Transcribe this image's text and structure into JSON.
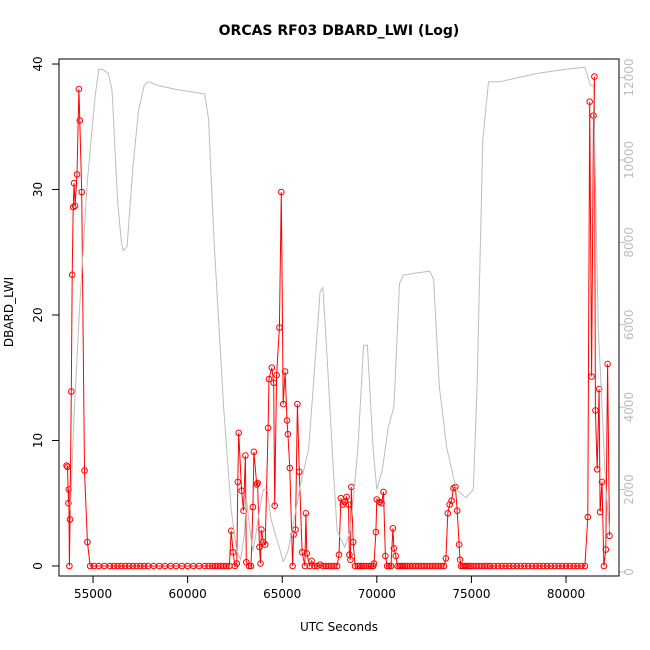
{
  "chart_data": {
    "type": "line",
    "title": "ORCAS RF03 DBARD_LWI (Log)",
    "xlabel": "UTC Seconds",
    "ylabel": "DBARD_LWI",
    "xlim": [
      53200,
      82800
    ],
    "ylim": [
      -0.8,
      40.4
    ],
    "y2lim": [
      -100,
      12450
    ],
    "x_ticks": [
      55000,
      60000,
      65000,
      70000,
      75000,
      80000
    ],
    "y_ticks": [
      0,
      10,
      20,
      30,
      40
    ],
    "y2_ticks": [
      0,
      2000,
      4000,
      6000,
      8000,
      10000,
      12000
    ],
    "series": [
      {
        "color": "#ff0000",
        "style": "line+open-circles",
        "axis": "left",
        "points": [
          [
            53600,
            8
          ],
          [
            53650,
            7.9
          ],
          [
            53700,
            5
          ],
          [
            53720,
            6.1
          ],
          [
            53750,
            0
          ],
          [
            53780,
            3.7
          ],
          [
            53850,
            13.9
          ],
          [
            53900,
            23.2
          ],
          [
            53950,
            28.6
          ],
          [
            54000,
            30.5
          ],
          [
            54050,
            28.7
          ],
          [
            54150,
            31.2
          ],
          [
            54250,
            38
          ],
          [
            54300,
            35.5
          ],
          [
            54400,
            29.8
          ],
          [
            54550,
            7.6
          ],
          [
            54700,
            1.9
          ],
          [
            54850,
            0
          ],
          [
            55050,
            0
          ],
          [
            55300,
            0
          ],
          [
            55600,
            0
          ],
          [
            55900,
            0
          ],
          [
            56100,
            0
          ],
          [
            56300,
            0
          ],
          [
            56500,
            0
          ],
          [
            56700,
            0
          ],
          [
            56900,
            0
          ],
          [
            57100,
            0
          ],
          [
            57300,
            0
          ],
          [
            57500,
            0
          ],
          [
            57700,
            0
          ],
          [
            57900,
            0
          ],
          [
            58200,
            0
          ],
          [
            58500,
            0
          ],
          [
            58800,
            0
          ],
          [
            59100,
            0
          ],
          [
            59400,
            0
          ],
          [
            59700,
            0
          ],
          [
            60000,
            0
          ],
          [
            60300,
            0
          ],
          [
            60600,
            0
          ],
          [
            60900,
            0
          ],
          [
            61100,
            0
          ],
          [
            61300,
            0
          ],
          [
            61450,
            0
          ],
          [
            61600,
            0
          ],
          [
            61750,
            0
          ],
          [
            61900,
            0
          ],
          [
            62050,
            0
          ],
          [
            62200,
            0
          ],
          [
            62300,
            2.8
          ],
          [
            62400,
            1.1
          ],
          [
            62500,
            0
          ],
          [
            62600,
            0.2
          ],
          [
            62650,
            6.7
          ],
          [
            62700,
            10.6
          ],
          [
            62850,
            6
          ],
          [
            62950,
            4.4
          ],
          [
            63050,
            8.8
          ],
          [
            63100,
            0.3
          ],
          [
            63250,
            0
          ],
          [
            63350,
            0
          ],
          [
            63450,
            4.7
          ],
          [
            63500,
            9.1
          ],
          [
            63650,
            6.5
          ],
          [
            63700,
            6.6
          ],
          [
            63800,
            1.5
          ],
          [
            63850,
            0.2
          ],
          [
            63900,
            2.9
          ],
          [
            64000,
            1.9
          ],
          [
            64100,
            1.7
          ],
          [
            64250,
            11
          ],
          [
            64300,
            14.9
          ],
          [
            64450,
            15.8
          ],
          [
            64550,
            14.6
          ],
          [
            64600,
            4.8
          ],
          [
            64700,
            15.2
          ],
          [
            64850,
            19
          ],
          [
            64950,
            29.8
          ],
          [
            65050,
            12.9
          ],
          [
            65150,
            15.5
          ],
          [
            65250,
            11.6
          ],
          [
            65300,
            10.5
          ],
          [
            65400,
            7.8
          ],
          [
            65550,
            0
          ],
          [
            65600,
            2.5
          ],
          [
            65700,
            2.9
          ],
          [
            65800,
            12.9
          ],
          [
            65900,
            7.5
          ],
          [
            66050,
            1.1
          ],
          [
            66200,
            0
          ],
          [
            66250,
            4.2
          ],
          [
            66300,
            1
          ],
          [
            66450,
            0
          ],
          [
            66550,
            0.4
          ],
          [
            66700,
            0
          ],
          [
            66850,
            0
          ],
          [
            67000,
            0.1
          ],
          [
            67150,
            0
          ],
          [
            67300,
            0
          ],
          [
            67450,
            0
          ],
          [
            67600,
            0
          ],
          [
            67750,
            0
          ],
          [
            67900,
            0
          ],
          [
            68000,
            0.9
          ],
          [
            68100,
            5.4
          ],
          [
            68200,
            4.9
          ],
          [
            68300,
            5.1
          ],
          [
            68400,
            5.5
          ],
          [
            68500,
            4.9
          ],
          [
            68550,
            0.9
          ],
          [
            68600,
            0.5
          ],
          [
            68650,
            6.3
          ],
          [
            68750,
            1.9
          ],
          [
            68850,
            0
          ],
          [
            69000,
            0
          ],
          [
            69100,
            0
          ],
          [
            69200,
            0
          ],
          [
            69300,
            0
          ],
          [
            69450,
            0
          ],
          [
            69600,
            0
          ],
          [
            69700,
            0
          ],
          [
            69800,
            0
          ],
          [
            69850,
            0.2
          ],
          [
            69950,
            2.7
          ],
          [
            70000,
            5.3
          ],
          [
            70150,
            5.1
          ],
          [
            70250,
            5
          ],
          [
            70350,
            5.9
          ],
          [
            70450,
            0.8
          ],
          [
            70550,
            0
          ],
          [
            70650,
            0
          ],
          [
            70750,
            0
          ],
          [
            70850,
            3
          ],
          [
            70900,
            1.4
          ],
          [
            71000,
            0.8
          ],
          [
            71100,
            0
          ],
          [
            71200,
            0
          ],
          [
            71300,
            0
          ],
          [
            71400,
            0
          ],
          [
            71500,
            0
          ],
          [
            71600,
            0
          ],
          [
            71750,
            0
          ],
          [
            71900,
            0
          ],
          [
            72050,
            0
          ],
          [
            72200,
            0
          ],
          [
            72350,
            0
          ],
          [
            72500,
            0
          ],
          [
            72650,
            0
          ],
          [
            72800,
            0
          ],
          [
            72950,
            0
          ],
          [
            73100,
            0
          ],
          [
            73250,
            0
          ],
          [
            73400,
            0
          ],
          [
            73550,
            0
          ],
          [
            73650,
            0.6
          ],
          [
            73750,
            4.2
          ],
          [
            73850,
            4.9
          ],
          [
            73950,
            5.2
          ],
          [
            74050,
            6.2
          ],
          [
            74150,
            6.3
          ],
          [
            74250,
            4.4
          ],
          [
            74350,
            1.7
          ],
          [
            74400,
            0.5
          ],
          [
            74450,
            0
          ],
          [
            74550,
            0
          ],
          [
            74650,
            0
          ],
          [
            74750,
            0
          ],
          [
            74850,
            0
          ],
          [
            74950,
            0
          ],
          [
            75100,
            0
          ],
          [
            75250,
            0
          ],
          [
            75400,
            0
          ],
          [
            75550,
            0
          ],
          [
            75700,
            0
          ],
          [
            75850,
            0
          ],
          [
            76000,
            0
          ],
          [
            76200,
            0
          ],
          [
            76400,
            0
          ],
          [
            76600,
            0
          ],
          [
            76800,
            0
          ],
          [
            77000,
            0
          ],
          [
            77200,
            0
          ],
          [
            77400,
            0
          ],
          [
            77600,
            0
          ],
          [
            77800,
            0
          ],
          [
            78000,
            0
          ],
          [
            78200,
            0
          ],
          [
            78400,
            0
          ],
          [
            78600,
            0
          ],
          [
            78800,
            0
          ],
          [
            79000,
            0
          ],
          [
            79200,
            0
          ],
          [
            79400,
            0
          ],
          [
            79600,
            0
          ],
          [
            79800,
            0
          ],
          [
            80000,
            0
          ],
          [
            80200,
            0
          ],
          [
            80400,
            0
          ],
          [
            80600,
            0
          ],
          [
            80800,
            0
          ],
          [
            81000,
            0
          ],
          [
            81150,
            3.9
          ],
          [
            81250,
            37
          ],
          [
            81350,
            15.1
          ],
          [
            81450,
            35.9
          ],
          [
            81500,
            39
          ],
          [
            81550,
            12.4
          ],
          [
            81650,
            7.7
          ],
          [
            81750,
            14.1
          ],
          [
            81800,
            4.3
          ],
          [
            81900,
            6.7
          ],
          [
            82000,
            0
          ],
          [
            82100,
            1.3
          ],
          [
            82200,
            16.1
          ],
          [
            82300,
            2.4
          ]
        ]
      },
      {
        "color": "#bdbdbd",
        "style": "line",
        "axis": "right",
        "points": [
          [
            53800,
            1500
          ],
          [
            54000,
            3800
          ],
          [
            54300,
            6500
          ],
          [
            54700,
            9500
          ],
          [
            55100,
            11500
          ],
          [
            55300,
            12200
          ],
          [
            55500,
            12200
          ],
          [
            55800,
            12100
          ],
          [
            56000,
            11700
          ],
          [
            56300,
            9000
          ],
          [
            56500,
            8000
          ],
          [
            56600,
            7800
          ],
          [
            56800,
            7900
          ],
          [
            57100,
            9800
          ],
          [
            57400,
            11200
          ],
          [
            57700,
            11800
          ],
          [
            57900,
            11900
          ],
          [
            58500,
            11800
          ],
          [
            59500,
            11700
          ],
          [
            60300,
            11650
          ],
          [
            60900,
            11600
          ],
          [
            61100,
            11000
          ],
          [
            61400,
            8000
          ],
          [
            61900,
            4000
          ],
          [
            62300,
            1500
          ],
          [
            62600,
            500
          ],
          [
            62800,
            300
          ],
          [
            63000,
            900
          ],
          [
            63100,
            1800
          ],
          [
            63300,
            1000
          ],
          [
            63450,
            500
          ],
          [
            63600,
            900
          ],
          [
            63800,
            1500
          ],
          [
            64000,
            2000
          ],
          [
            64200,
            2000
          ],
          [
            64400,
            1300
          ],
          [
            64700,
            800
          ],
          [
            64900,
            500
          ],
          [
            65050,
            250
          ],
          [
            65300,
            500
          ],
          [
            65600,
            1200
          ],
          [
            66000,
            2200
          ],
          [
            66400,
            3000
          ],
          [
            66800,
            5500
          ],
          [
            67000,
            6800
          ],
          [
            67150,
            6900
          ],
          [
            67400,
            5000
          ],
          [
            67700,
            2500
          ],
          [
            67900,
            1000
          ],
          [
            68100,
            800
          ],
          [
            68300,
            600
          ],
          [
            68600,
            1000
          ],
          [
            69000,
            3000
          ],
          [
            69300,
            5500
          ],
          [
            69500,
            5500
          ],
          [
            69800,
            3000
          ],
          [
            70000,
            2000
          ],
          [
            70300,
            2500
          ],
          [
            70600,
            3500
          ],
          [
            70900,
            4000
          ],
          [
            71200,
            7000
          ],
          [
            71400,
            7200
          ],
          [
            72000,
            7250
          ],
          [
            72800,
            7300
          ],
          [
            73000,
            7100
          ],
          [
            73300,
            4500
          ],
          [
            73700,
            3000
          ],
          [
            74200,
            2000
          ],
          [
            74700,
            1800
          ],
          [
            75100,
            2000
          ],
          [
            75300,
            4500
          ],
          [
            75600,
            10500
          ],
          [
            75900,
            11900
          ],
          [
            76500,
            11900
          ],
          [
            77500,
            12000
          ],
          [
            78500,
            12100
          ],
          [
            80000,
            12200
          ],
          [
            81000,
            12250
          ],
          [
            81300,
            11800
          ],
          [
            81450,
            11800
          ],
          [
            81700,
            6000
          ],
          [
            82100,
            2000
          ],
          [
            82300,
            1000
          ]
        ]
      }
    ]
  }
}
